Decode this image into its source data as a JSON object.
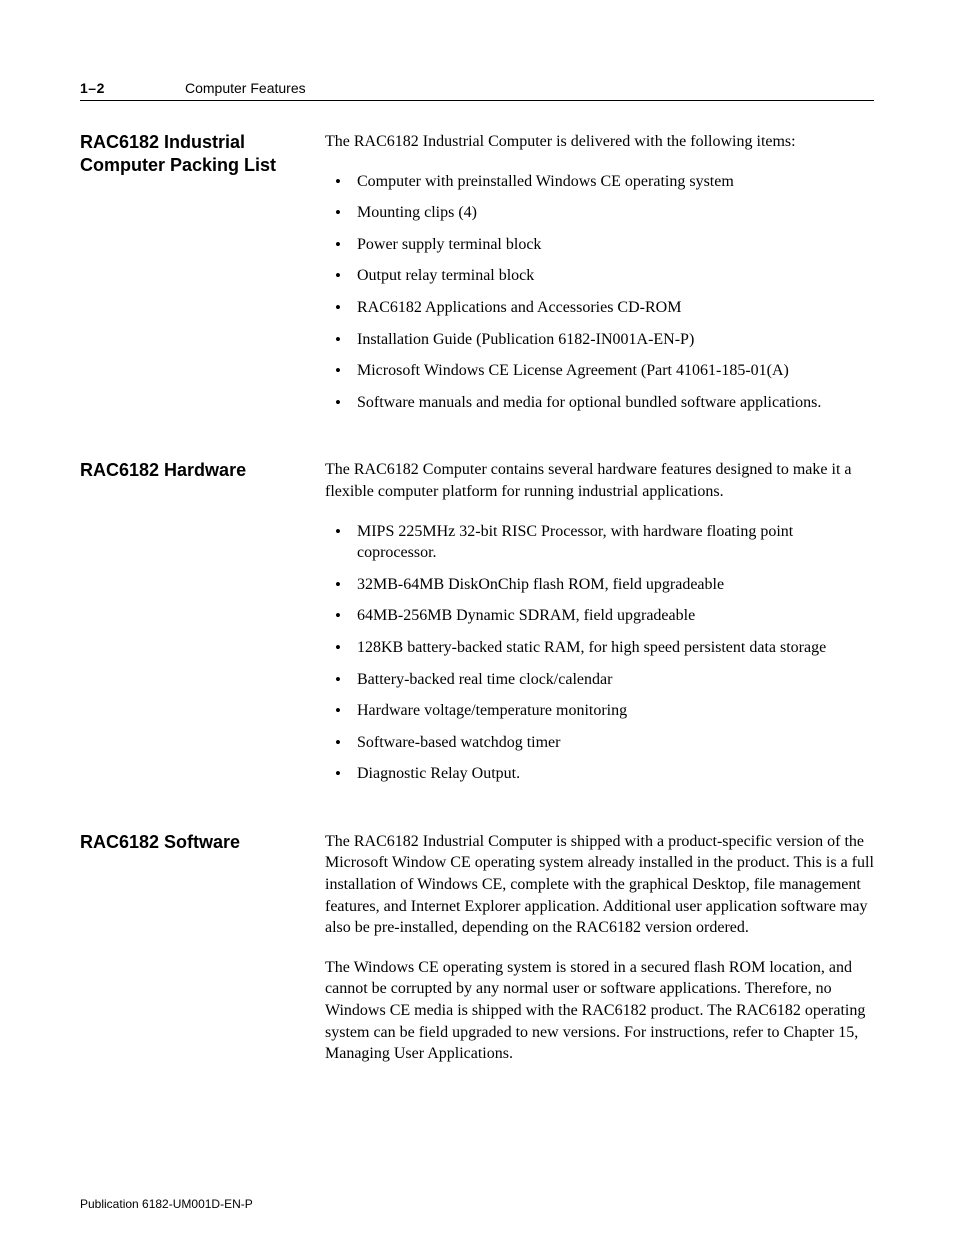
{
  "header": {
    "page_number": "1–2",
    "chapter_title": "Computer Features"
  },
  "sections": {
    "packing": {
      "heading": "RAC6182 Industrial Computer Packing List",
      "intro": "The RAC6182 Industrial Computer is delivered with the following items:",
      "items": [
        "Computer with preinstalled Windows CE operating system",
        "Mounting clips (4)",
        "Power supply terminal block",
        "Output relay terminal block",
        "RAC6182 Applications and Accessories CD-ROM",
        "Installation Guide (Publication 6182-IN001A-EN-P)",
        "Microsoft Windows CE License Agreement (Part 41061-185-01(A)",
        "Software manuals and media for optional bundled software applications."
      ]
    },
    "hardware": {
      "heading": "RAC6182 Hardware",
      "intro": "The RAC6182 Computer contains several hardware features designed to make it a flexible computer platform for running industrial applications.",
      "items": [
        "MIPS 225MHz 32-bit RISC Processor, with hardware floating point coprocessor.",
        "32MB-64MB DiskOnChip flash ROM, field upgradeable",
        "64MB-256MB Dynamic SDRAM, field upgradeable",
        "128KB battery-backed static RAM, for high speed persistent data storage",
        "Battery-backed real time clock/calendar",
        "Hardware voltage/temperature monitoring",
        "Software-based watchdog timer",
        "Diagnostic Relay Output."
      ]
    },
    "software": {
      "heading": "RAC6182 Software",
      "para1": "The RAC6182 Industrial Computer is shipped with a product-specific version of the Microsoft Window CE operating system already installed in the product.  This is a full installation of Windows CE, complete with the graphical Desktop, file management features, and Internet Explorer application.  Additional user application software may also be pre-installed, depending on the RAC6182 version ordered.",
      "para2": "The Windows CE operating system is stored in a secured flash ROM location, and cannot be corrupted by any normal user or software applications.  Therefore, no Windows CE media is shipped with the RAC6182 product. The RAC6182 operating system can be field upgraded to new versions.  For instructions, refer to Chapter 15, Managing User Applications."
    }
  },
  "footer": {
    "publication": "Publication 6182-UM001D-EN-P"
  }
}
